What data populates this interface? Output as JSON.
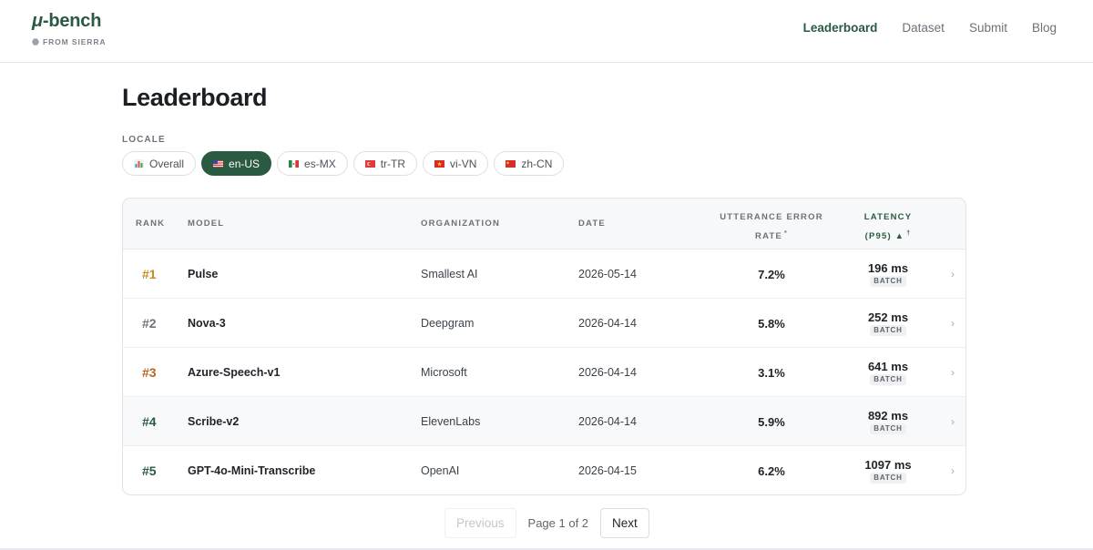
{
  "brand": {
    "mu": "μ",
    "name": "-bench",
    "sub": "FROM SIERRA"
  },
  "nav": [
    {
      "label": "Leaderboard",
      "active": true
    },
    {
      "label": "Dataset",
      "active": false
    },
    {
      "label": "Submit",
      "active": false
    },
    {
      "label": "Blog",
      "active": false
    }
  ],
  "page_title": "Leaderboard",
  "locale": {
    "label": "LOCALE",
    "options": [
      {
        "label": "Overall",
        "icon": "bar-chart-icon",
        "active": false
      },
      {
        "label": "en-US",
        "icon": "us-flag-icon",
        "active": true
      },
      {
        "label": "es-MX",
        "icon": "mx-flag-icon",
        "active": false
      },
      {
        "label": "tr-TR",
        "icon": "tr-flag-icon",
        "active": false
      },
      {
        "label": "vi-VN",
        "icon": "vn-flag-icon",
        "active": false
      },
      {
        "label": "zh-CN",
        "icon": "cn-flag-icon",
        "active": false
      }
    ]
  },
  "table": {
    "headers": {
      "rank": "RANK",
      "model": "MODEL",
      "organization": "ORGANIZATION",
      "date": "DATE",
      "rate_line1": "UTTERANCE ERROR",
      "rate_line2": "RATE",
      "rate_mark": "*",
      "latency_line1": "LATENCY",
      "latency_line2": "(P95) ▲",
      "latency_mark": "†"
    },
    "rows": [
      {
        "rank": "#1",
        "model": "Pulse",
        "org": "Smallest AI",
        "date": "2026-05-14",
        "rate": "7.2%",
        "latency": "196 ms",
        "badge": "BATCH",
        "rank_color": "#c98a1e"
      },
      {
        "rank": "#2",
        "model": "Nova-3",
        "org": "Deepgram",
        "date": "2026-04-14",
        "rate": "5.8%",
        "latency": "252 ms",
        "badge": "BATCH",
        "rank_color": "#6b7279"
      },
      {
        "rank": "#3",
        "model": "Azure-Speech-v1",
        "org": "Microsoft",
        "date": "2026-04-14",
        "rate": "3.1%",
        "latency": "641 ms",
        "badge": "BATCH",
        "rank_color": "#b8621e"
      },
      {
        "rank": "#4",
        "model": "Scribe-v2",
        "org": "ElevenLabs",
        "date": "2026-04-14",
        "rate": "5.9%",
        "latency": "892 ms",
        "badge": "BATCH",
        "rank_color": "#2b5a42"
      },
      {
        "rank": "#5",
        "model": "GPT-4o-Mini-Transcribe",
        "org": "OpenAI",
        "date": "2026-04-15",
        "rate": "6.2%",
        "latency": "1097 ms",
        "badge": "BATCH",
        "rank_color": "#2b5a42"
      }
    ]
  },
  "pagination": {
    "previous": "Previous",
    "info": "Page 1 of 2",
    "next": "Next"
  },
  "colors": {
    "accent": "#2b5a42"
  }
}
